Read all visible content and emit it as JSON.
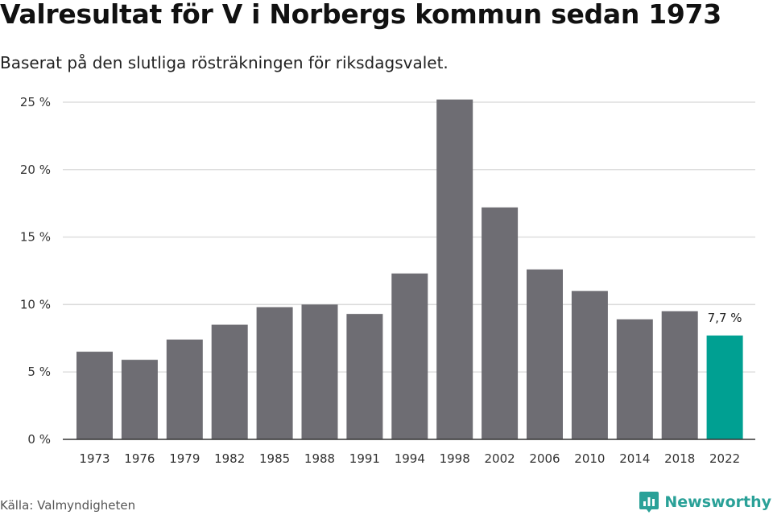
{
  "title": "Valresultat för V i Norbergs kommun sedan 1973",
  "subtitle": "Baserat på den slutliga rösträkningen för riksdagsvalet.",
  "source": "Källa: Valmyndigheten",
  "brand": {
    "name": "Newsworthy",
    "icon": "newsworthy-logo-icon",
    "color": "#2aa198"
  },
  "colors": {
    "bar": "#6e6d73",
    "highlight": "#00a092",
    "grid": "#dddddd",
    "axis": "#333333"
  },
  "chart_data": {
    "type": "bar",
    "title": "Valresultat för V i Norbergs kommun sedan 1973",
    "subtitle": "Baserat på den slutliga rösträkningen för riksdagsvalet.",
    "categories": [
      "1973",
      "1976",
      "1979",
      "1982",
      "1985",
      "1988",
      "1991",
      "1994",
      "1998",
      "2002",
      "2006",
      "2010",
      "2014",
      "2018",
      "2022"
    ],
    "values": [
      6.5,
      5.9,
      7.4,
      8.5,
      9.8,
      10.0,
      9.3,
      12.3,
      25.2,
      17.2,
      12.6,
      11.0,
      8.9,
      9.5,
      7.7
    ],
    "y_ticks": [
      0,
      5,
      10,
      15,
      20,
      25
    ],
    "y_tick_labels": [
      "0 %",
      "5 %",
      "10 %",
      "15 %",
      "20 %",
      "25 %"
    ],
    "ylim": [
      0,
      25
    ],
    "grid": true,
    "highlight_index": 14,
    "data_labels": [
      {
        "index": 14,
        "text": "7,7 %"
      }
    ]
  }
}
